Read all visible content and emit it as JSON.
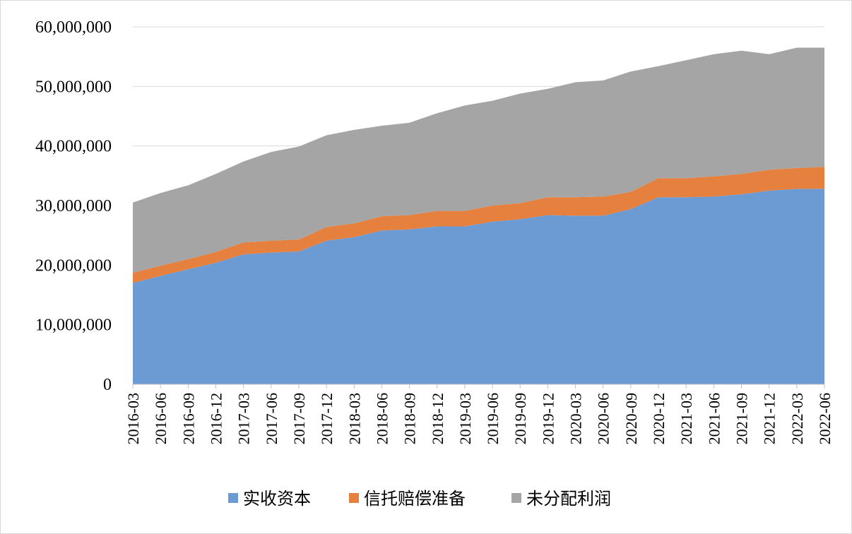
{
  "chart_data": {
    "type": "area",
    "stacked": true,
    "categories": [
      "2016-03",
      "2016-06",
      "2016-09",
      "2016-12",
      "2017-03",
      "2017-06",
      "2017-09",
      "2017-12",
      "2018-03",
      "2018-06",
      "2018-09",
      "2018-12",
      "2019-03",
      "2019-06",
      "2019-09",
      "2019-12",
      "2020-03",
      "2020-06",
      "2020-09",
      "2020-12",
      "2021-03",
      "2021-06",
      "2021-09",
      "2021-12",
      "2022-03",
      "2022-06"
    ],
    "series": [
      {
        "name": "实收资本",
        "color": "#6b9bd2",
        "values": [
          17000000,
          18200000,
          19300000,
          20400000,
          21800000,
          22100000,
          22300000,
          24100000,
          24700000,
          25800000,
          26000000,
          26500000,
          26500000,
          27300000,
          27700000,
          28400000,
          28300000,
          28300000,
          29400000,
          31400000,
          31400000,
          31500000,
          31900000,
          32500000,
          32800000,
          32800000
        ]
      },
      {
        "name": "信托赔偿准备",
        "color": "#e5803f",
        "values": [
          1700000,
          1700000,
          1700000,
          1800000,
          2000000,
          2000000,
          2000000,
          2300000,
          2300000,
          2400000,
          2400000,
          2600000,
          2600000,
          2700000,
          2700000,
          3000000,
          3100000,
          3200000,
          2900000,
          3200000,
          3200000,
          3400000,
          3400000,
          3500000,
          3500000,
          3700000
        ]
      },
      {
        "name": "未分配利润",
        "color": "#a5a5a5",
        "values": [
          11800000,
          12200000,
          12400000,
          13100000,
          13600000,
          14900000,
          15600000,
          15400000,
          15700000,
          15200000,
          15500000,
          16400000,
          17700000,
          17600000,
          18400000,
          18200000,
          19300000,
          19500000,
          20200000,
          18800000,
          19800000,
          20500000,
          20700000,
          19400000,
          20200000,
          20000000
        ]
      }
    ],
    "ylim": [
      0,
      60000000
    ],
    "yticks": [
      0,
      10000000,
      20000000,
      30000000,
      40000000,
      50000000,
      60000000
    ],
    "ytick_labels": [
      "0",
      "10,000,000",
      "20,000,000",
      "30,000,000",
      "40,000,000",
      "50,000,000",
      "60,000,000"
    ],
    "grid": true,
    "legend_position": "bottom"
  }
}
